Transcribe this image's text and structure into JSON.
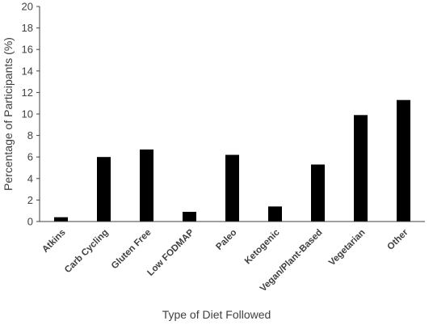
{
  "chart_data": {
    "type": "bar",
    "categories": [
      "Atkins",
      "Carb Cycling",
      "Gluten Free",
      "Low FODMAP",
      "Paleo",
      "Ketogenic",
      "Vegan/Plant-Based",
      "Vegetarian",
      "Other"
    ],
    "values": [
      0.4,
      6.0,
      6.7,
      0.9,
      6.2,
      1.4,
      5.3,
      9.9,
      11.3
    ],
    "xlabel": "Type of Diet Followed",
    "ylabel": "Percentage of Participants (%)",
    "ylim": [
      0,
      20
    ],
    "yticks": [
      0,
      2,
      4,
      6,
      8,
      10,
      12,
      14,
      16,
      18,
      20
    ],
    "grid": false,
    "colors": {
      "bar": "#000000",
      "axis": "#404040",
      "text": "#404040"
    }
  }
}
